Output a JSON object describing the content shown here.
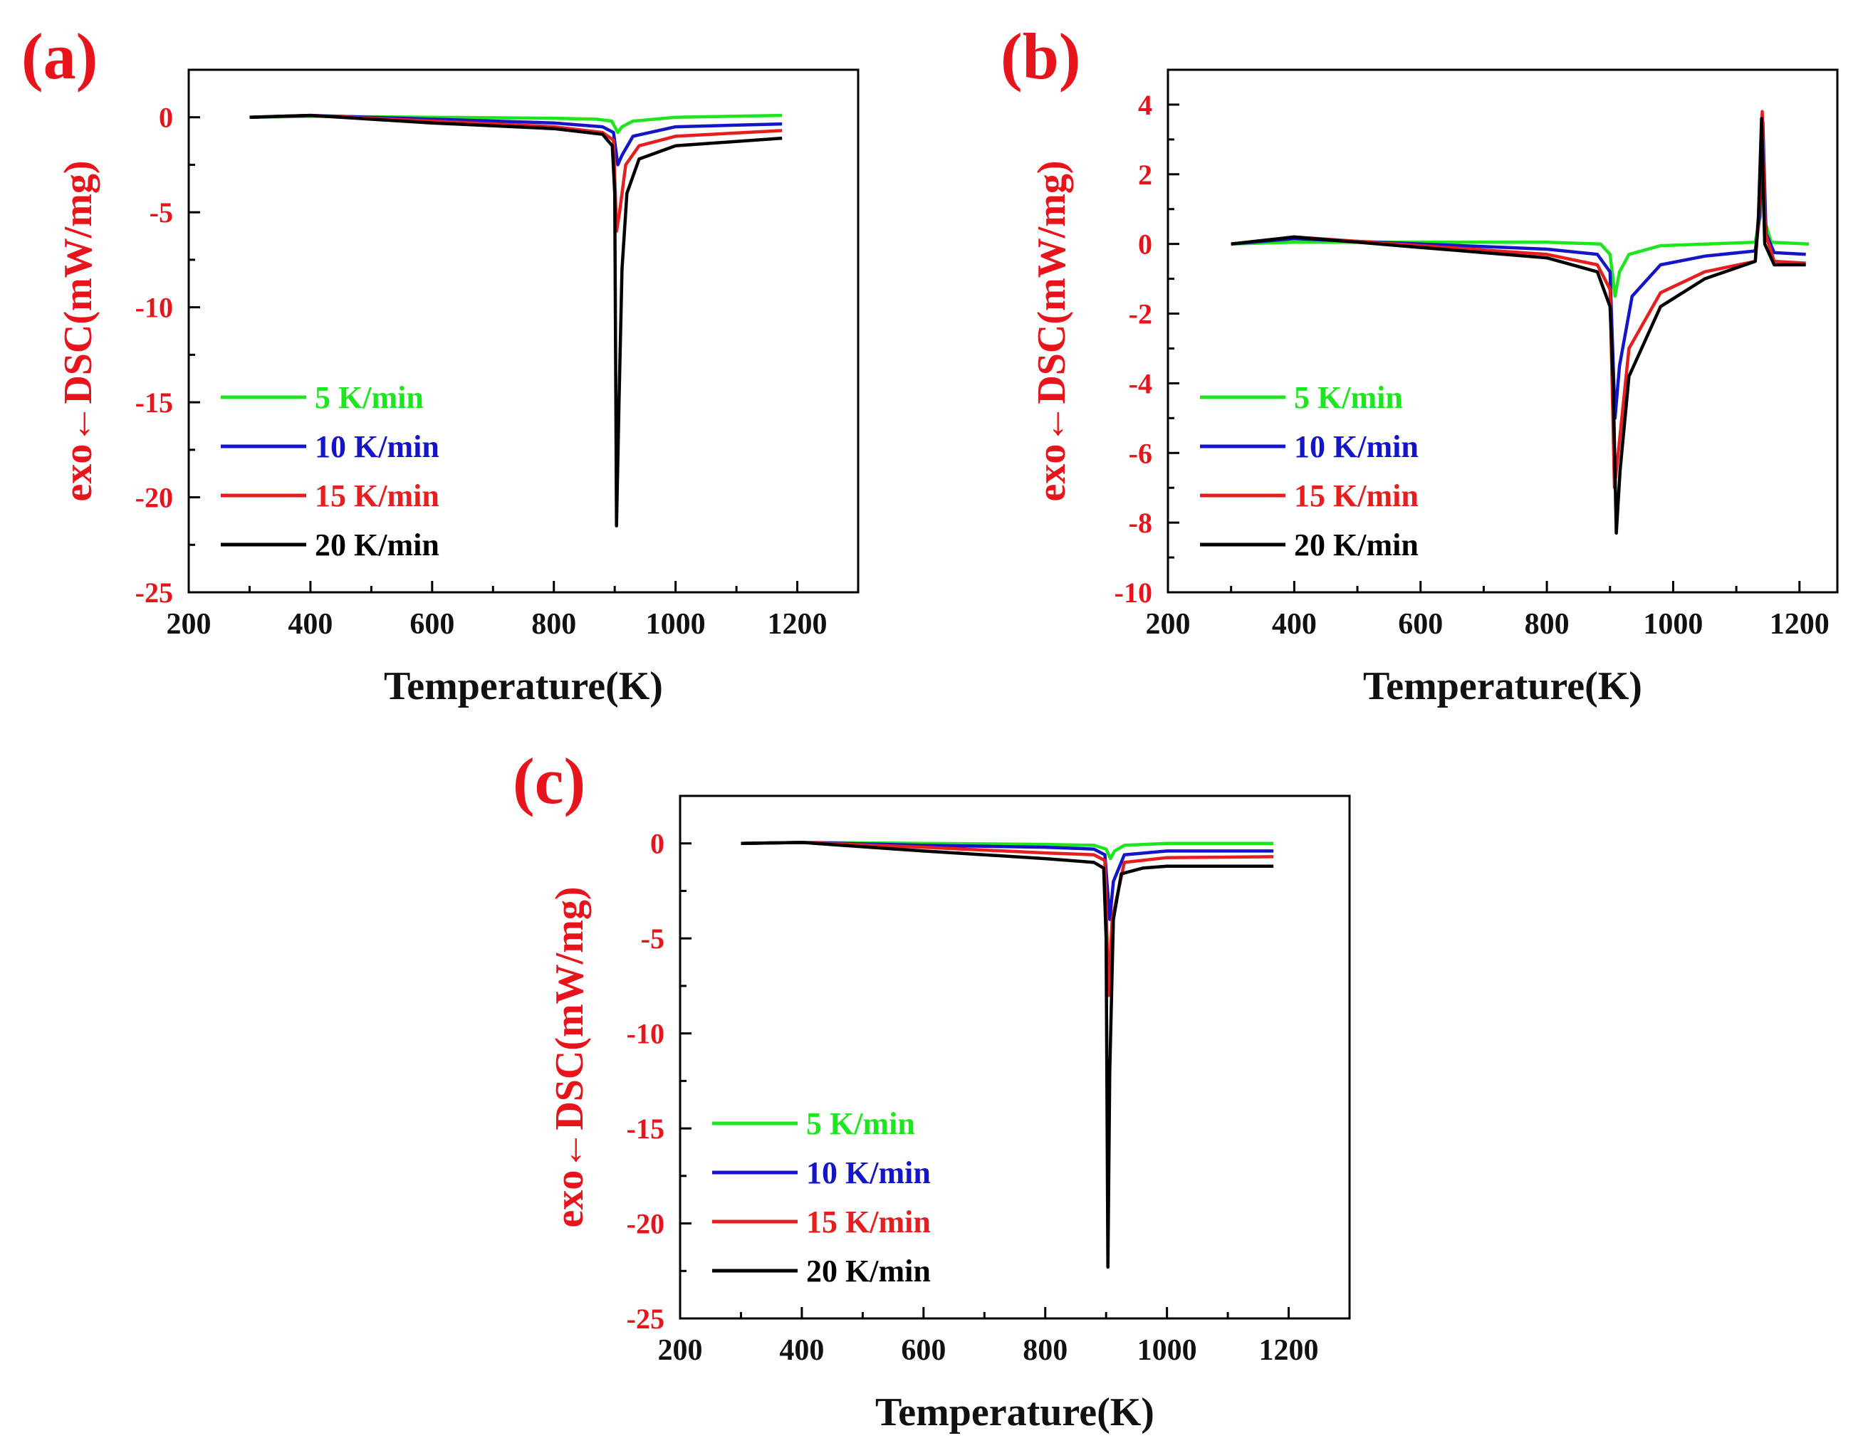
{
  "figure": {
    "legend_entries": [
      {
        "name": "5 K/min",
        "color": "#1ee61e"
      },
      {
        "name": "10 K/min",
        "color": "#1414c8"
      },
      {
        "name": "15 K/min",
        "color": "#e61e1e"
      },
      {
        "name": "20 K/min",
        "color": "#000000"
      }
    ]
  },
  "chart_data": [
    {
      "type": "line",
      "panel_label": "(a)",
      "xlabel": "Temperature(K)",
      "ylabel": "exo←DSC(mW/mg)",
      "xlim": [
        200,
        1300
      ],
      "ylim": [
        -25,
        2.5
      ],
      "x_ticks": [
        "200",
        "400",
        "600",
        "800",
        "1000",
        "1200"
      ],
      "y_ticks": [
        "0",
        "-5",
        "-10",
        "-15",
        "-20",
        "-25"
      ],
      "y_tick_values": [
        0,
        -5,
        -10,
        -15,
        -20,
        -25
      ],
      "legend": [
        "5 K/min",
        "10 K/min",
        "15 K/min",
        "20 K/min"
      ],
      "series": [
        {
          "name": "5 K/min",
          "color": "#1ee61e",
          "points": [
            [
              300,
              0
            ],
            [
              400,
              0.05
            ],
            [
              600,
              0
            ],
            [
              800,
              -0.05
            ],
            [
              870,
              -0.1
            ],
            [
              895,
              -0.2
            ],
            [
              905,
              -0.8
            ],
            [
              912,
              -0.5
            ],
            [
              930,
              -0.2
            ],
            [
              1000,
              0
            ],
            [
              1175,
              0.1
            ]
          ]
        },
        {
          "name": "10 K/min",
          "color": "#1414c8",
          "points": [
            [
              300,
              0
            ],
            [
              400,
              0.1
            ],
            [
              600,
              -0.1
            ],
            [
              800,
              -0.3
            ],
            [
              880,
              -0.5
            ],
            [
              898,
              -0.8
            ],
            [
              905,
              -2.5
            ],
            [
              912,
              -2.0
            ],
            [
              930,
              -1.0
            ],
            [
              1000,
              -0.5
            ],
            [
              1175,
              -0.35
            ]
          ]
        },
        {
          "name": "15 K/min",
          "color": "#e61e1e",
          "points": [
            [
              300,
              0
            ],
            [
              400,
              0.1
            ],
            [
              600,
              -0.2
            ],
            [
              800,
              -0.5
            ],
            [
              880,
              -0.8
            ],
            [
              898,
              -1.2
            ],
            [
              903,
              -6.0
            ],
            [
              908,
              -5.0
            ],
            [
              918,
              -2.5
            ],
            [
              940,
              -1.5
            ],
            [
              1000,
              -1.0
            ],
            [
              1175,
              -0.7
            ]
          ]
        },
        {
          "name": "20 K/min",
          "color": "#000000",
          "points": [
            [
              300,
              0
            ],
            [
              400,
              0.1
            ],
            [
              600,
              -0.3
            ],
            [
              800,
              -0.6
            ],
            [
              880,
              -0.9
            ],
            [
              896,
              -1.5
            ],
            [
              900,
              -4.0
            ],
            [
              903,
              -21.5
            ],
            [
              907,
              -15.0
            ],
            [
              912,
              -8.0
            ],
            [
              920,
              -4.0
            ],
            [
              940,
              -2.2
            ],
            [
              1000,
              -1.5
            ],
            [
              1175,
              -1.1
            ]
          ]
        }
      ]
    },
    {
      "type": "line",
      "panel_label": "(b)",
      "xlabel": "Temperature(K)",
      "ylabel": "exo←DSC(mW/mg)",
      "xlim": [
        200,
        1260
      ],
      "ylim": [
        -10,
        5
      ],
      "x_ticks": [
        "200",
        "400",
        "600",
        "800",
        "1000",
        "1200"
      ],
      "y_ticks": [
        "4",
        "2",
        "0",
        "-2",
        "-4",
        "-6",
        "-8",
        "-10"
      ],
      "y_tick_values": [
        4,
        2,
        0,
        -2,
        -4,
        -6,
        -8,
        -10
      ],
      "legend": [
        "5 K/min",
        "10 K/min",
        "15 K/min",
        "20 K/min"
      ],
      "series": [
        {
          "name": "5 K/min",
          "color": "#1ee61e",
          "points": [
            [
              300,
              0
            ],
            [
              400,
              0.05
            ],
            [
              600,
              0.05
            ],
            [
              800,
              0.05
            ],
            [
              885,
              0
            ],
            [
              900,
              -0.3
            ],
            [
              908,
              -1.5
            ],
            [
              915,
              -0.8
            ],
            [
              930,
              -0.3
            ],
            [
              980,
              -0.05
            ],
            [
              1130,
              0.05
            ],
            [
              1138,
              0.8
            ],
            [
              1142,
              3.2
            ],
            [
              1146,
              0.6
            ],
            [
              1155,
              0.05
            ],
            [
              1215,
              0
            ]
          ]
        },
        {
          "name": "10 K/min",
          "color": "#1414c8",
          "points": [
            [
              300,
              0
            ],
            [
              400,
              0.15
            ],
            [
              600,
              0
            ],
            [
              800,
              -0.15
            ],
            [
              880,
              -0.3
            ],
            [
              900,
              -0.8
            ],
            [
              908,
              -5.0
            ],
            [
              915,
              -3.5
            ],
            [
              935,
              -1.5
            ],
            [
              980,
              -0.6
            ],
            [
              1050,
              -0.35
            ],
            [
              1130,
              -0.2
            ],
            [
              1137,
              0.8
            ],
            [
              1142,
              3.5
            ],
            [
              1147,
              0.3
            ],
            [
              1160,
              -0.25
            ],
            [
              1210,
              -0.3
            ]
          ]
        },
        {
          "name": "15 K/min",
          "color": "#e61e1e",
          "points": [
            [
              300,
              0
            ],
            [
              400,
              0.2
            ],
            [
              600,
              -0.05
            ],
            [
              800,
              -0.3
            ],
            [
              880,
              -0.6
            ],
            [
              900,
              -1.3
            ],
            [
              907,
              -7.0
            ],
            [
              913,
              -6.0
            ],
            [
              930,
              -3.0
            ],
            [
              980,
              -1.4
            ],
            [
              1050,
              -0.8
            ],
            [
              1130,
              -0.5
            ],
            [
              1136,
              0.8
            ],
            [
              1141,
              3.8
            ],
            [
              1146,
              0.3
            ],
            [
              1160,
              -0.5
            ],
            [
              1210,
              -0.55
            ]
          ]
        },
        {
          "name": "20 K/min",
          "color": "#000000",
          "points": [
            [
              300,
              0
            ],
            [
              400,
              0.2
            ],
            [
              600,
              -0.1
            ],
            [
              800,
              -0.4
            ],
            [
              880,
              -0.8
            ],
            [
              900,
              -1.8
            ],
            [
              905,
              -4.0
            ],
            [
              910,
              -8.3
            ],
            [
              916,
              -6.5
            ],
            [
              930,
              -3.8
            ],
            [
              980,
              -1.8
            ],
            [
              1050,
              -1.0
            ],
            [
              1130,
              -0.5
            ],
            [
              1135,
              0.8
            ],
            [
              1140,
              3.6
            ],
            [
              1145,
              0.0
            ],
            [
              1160,
              -0.6
            ],
            [
              1210,
              -0.6
            ]
          ]
        }
      ]
    },
    {
      "type": "line",
      "panel_label": "(c)",
      "xlabel": "Temperature(K)",
      "ylabel": "exo←DSC(mW/mg)",
      "xlim": [
        200,
        1300
      ],
      "ylim": [
        -25,
        2.5
      ],
      "x_ticks": [
        "200",
        "400",
        "600",
        "800",
        "1000",
        "1200"
      ],
      "y_ticks": [
        "0",
        "-5",
        "-10",
        "-15",
        "-20",
        "-25"
      ],
      "y_tick_values": [
        0,
        -5,
        -10,
        -15,
        -20,
        -25
      ],
      "legend": [
        "5 K/min",
        "10 K/min",
        "15 K/min",
        "20 K/min"
      ],
      "series": [
        {
          "name": "5 K/min",
          "color": "#1ee61e",
          "points": [
            [
              300,
              0
            ],
            [
              400,
              0.05
            ],
            [
              600,
              0
            ],
            [
              800,
              -0.05
            ],
            [
              880,
              -0.1
            ],
            [
              900,
              -0.3
            ],
            [
              907,
              -0.8
            ],
            [
              914,
              -0.4
            ],
            [
              930,
              -0.1
            ],
            [
              1000,
              0
            ],
            [
              1175,
              0
            ]
          ]
        },
        {
          "name": "10 K/min",
          "color": "#1414c8",
          "points": [
            [
              300,
              0
            ],
            [
              400,
              0.05
            ],
            [
              600,
              -0.1
            ],
            [
              800,
              -0.2
            ],
            [
              880,
              -0.3
            ],
            [
              898,
              -0.6
            ],
            [
              906,
              -4.0
            ],
            [
              912,
              -2.0
            ],
            [
              930,
              -0.6
            ],
            [
              1000,
              -0.4
            ],
            [
              1175,
              -0.4
            ]
          ]
        },
        {
          "name": "15 K/min",
          "color": "#e61e1e",
          "points": [
            [
              300,
              0
            ],
            [
              400,
              0.05
            ],
            [
              600,
              -0.2
            ],
            [
              800,
              -0.5
            ],
            [
              880,
              -0.6
            ],
            [
              898,
              -0.9
            ],
            [
              904,
              -8.0
            ],
            [
              910,
              -4.0
            ],
            [
              930,
              -1.0
            ],
            [
              1000,
              -0.75
            ],
            [
              1175,
              -0.7
            ]
          ]
        },
        {
          "name": "20 K/min",
          "color": "#000000",
          "points": [
            [
              300,
              0
            ],
            [
              400,
              0.05
            ],
            [
              600,
              -0.4
            ],
            [
              800,
              -0.8
            ],
            [
              880,
              -1.0
            ],
            [
              896,
              -1.3
            ],
            [
              900,
              -5.0
            ],
            [
              903,
              -22.3
            ],
            [
              906,
              -12.0
            ],
            [
              912,
              -4.0
            ],
            [
              925,
              -1.6
            ],
            [
              960,
              -1.3
            ],
            [
              1000,
              -1.2
            ],
            [
              1175,
              -1.2
            ]
          ]
        }
      ]
    }
  ]
}
